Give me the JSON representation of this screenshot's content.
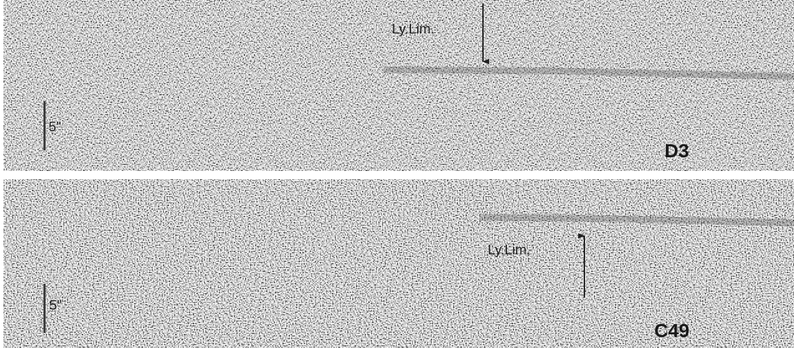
{
  "panels": [
    {
      "line_label": "Ly.Lim.",
      "scale_label": "5\"",
      "object": "D3"
    },
    {
      "line_label": "Ly.Lim.",
      "scale_label": "5\"",
      "object": "C49"
    }
  ]
}
